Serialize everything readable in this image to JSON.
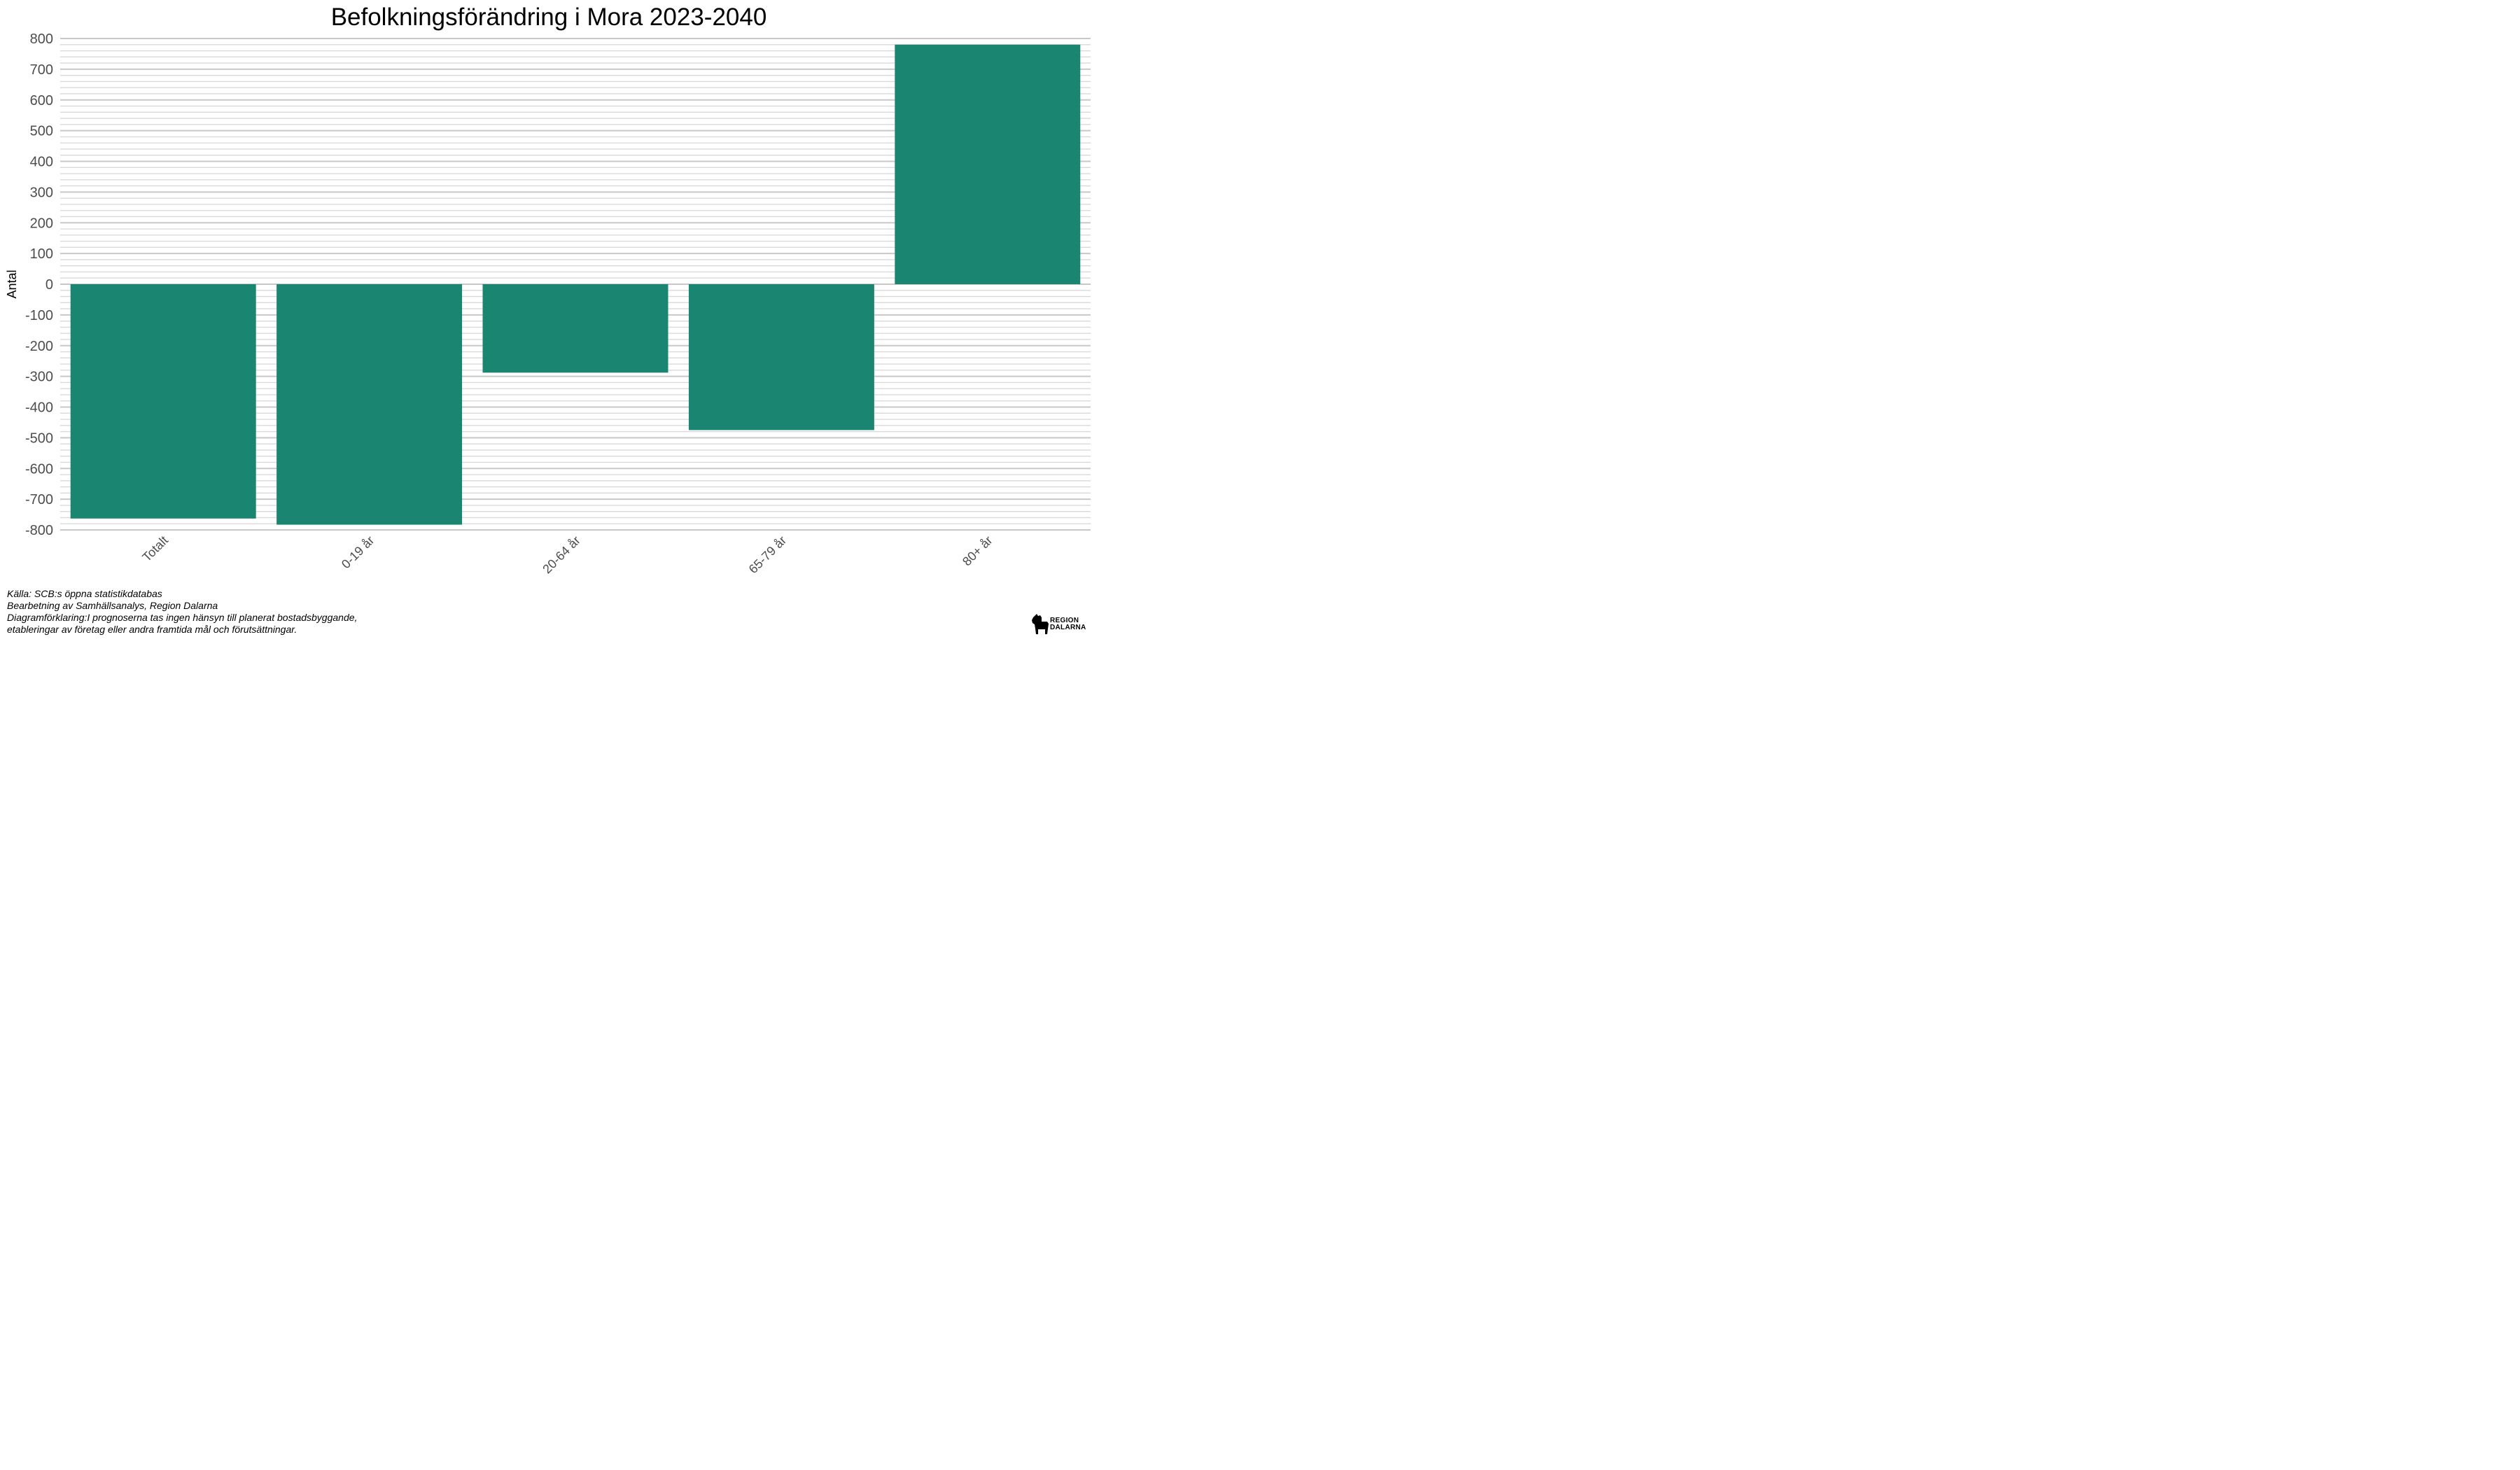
{
  "chart_data": {
    "type": "bar",
    "title": "Befolkningsförändring i Mora 2023-2040",
    "xlabel": "",
    "ylabel": "Antal",
    "categories": [
      "Totalt",
      "0-19 år",
      "20-64 år",
      "65-79 år",
      "80+ år"
    ],
    "values": [
      -763,
      -783,
      -288,
      -475,
      780
    ],
    "ylim": [
      -800,
      800
    ],
    "yticks": [
      800,
      700,
      600,
      500,
      400,
      300,
      200,
      100,
      0,
      -100,
      -200,
      -300,
      -400,
      -500,
      -600,
      -700,
      -800
    ],
    "bar_color": "#1a8672",
    "grid": true,
    "legend": "none"
  },
  "caption": {
    "lines": [
      "Källa: SCB:s öppna statistikdatabas",
      "Bearbetning av Samhällsanalys, Region Dalarna",
      "Diagramförklaring:I prognoserna tas ingen hänsyn till planerat bostadsbyggande,",
      "etableringar av företag eller andra framtida mål och förutsättningar."
    ]
  },
  "logo": {
    "line1": "REGION",
    "line2": "DALARNA",
    "icon": "dala-horse-icon"
  }
}
